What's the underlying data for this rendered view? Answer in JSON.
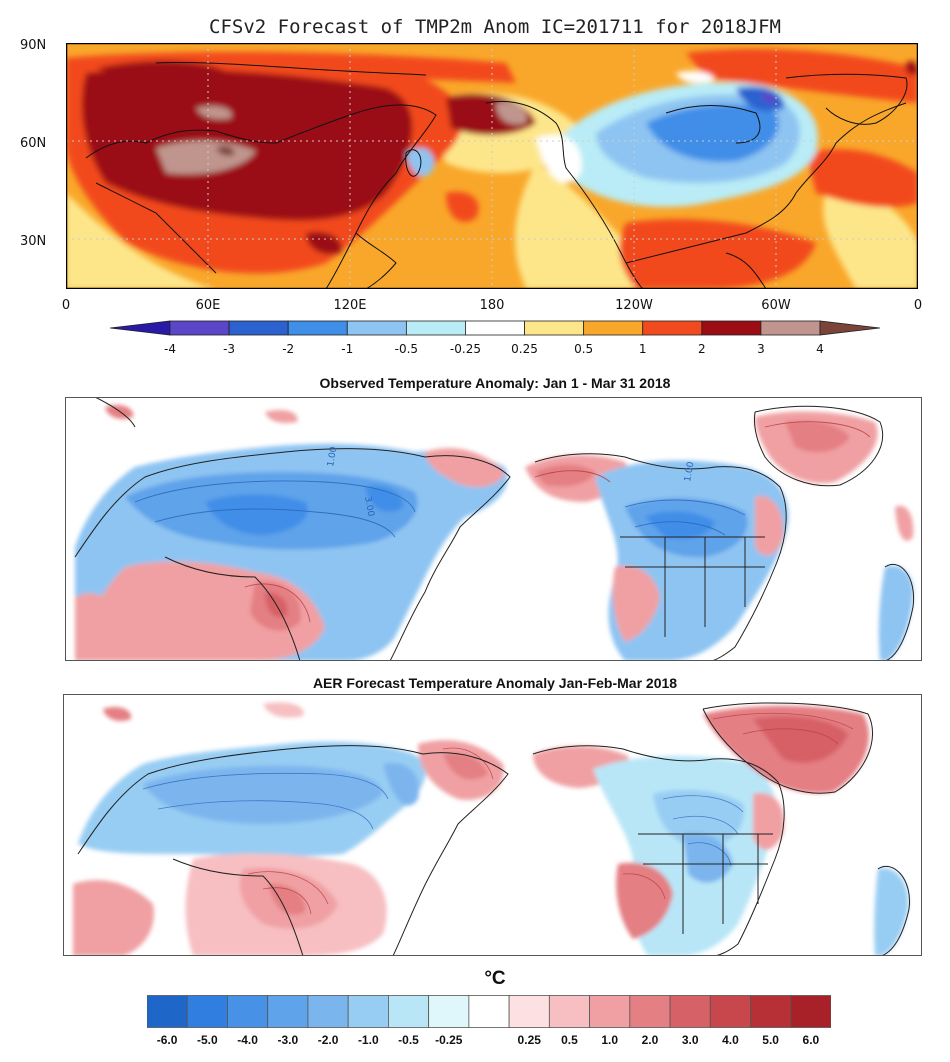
{
  "top_panel": {
    "title": "CFSv2 Forecast of TMP2m Anom  IC=201711 for 2018JFM",
    "lat_labels": [
      "90N",
      "60N",
      "30N"
    ],
    "lon_labels": [
      "0",
      "60E",
      "120E",
      "180",
      "120W",
      "60W",
      "0"
    ],
    "colorbar": {
      "labels": [
        "-4",
        "-3",
        "-2",
        "-1",
        "-0.5",
        "-0.25",
        "0.25",
        "0.5",
        "1",
        "2",
        "3",
        "4"
      ],
      "colors": [
        "#2a1aa8",
        "#5b46c8",
        "#2b62d0",
        "#3f8ee8",
        "#8ec4f2",
        "#b9ecf6",
        "#ffffff",
        "#fde68a",
        "#f9a72a",
        "#f24a1f",
        "#9b0c14",
        "#bf958d",
        "#7a4438"
      ]
    }
  },
  "middle_panel": {
    "title": "Observed Temperature Anomaly: Jan 1 - Mar 31 2018",
    "contour_labels": [
      "1.00",
      "3.00",
      "1.00"
    ]
  },
  "bottom_panel": {
    "title": "AER Forecast Temperature Anomaly Jan-Feb-Mar 2018"
  },
  "bottom_legend": {
    "unit": "°C",
    "labels": [
      "-6.0",
      "-5.0",
      "-4.0",
      "-3.0",
      "-2.0",
      "-1.0",
      "-0.5",
      "-0.25",
      "0.25",
      "0.5",
      "1.0",
      "2.0",
      "3.0",
      "4.0",
      "5.0",
      "6.0"
    ],
    "colors": [
      "#1f66c9",
      "#2f7ee0",
      "#4791e6",
      "#5fa3ea",
      "#7bb5ee",
      "#98cdf3",
      "#b8e6f7",
      "#dff7fb",
      "#ffffff",
      "#fde0e1",
      "#f7bfc2",
      "#f0a0a3",
      "#e47f83",
      "#d66166",
      "#c8474c",
      "#b73036",
      "#a82128"
    ]
  }
}
